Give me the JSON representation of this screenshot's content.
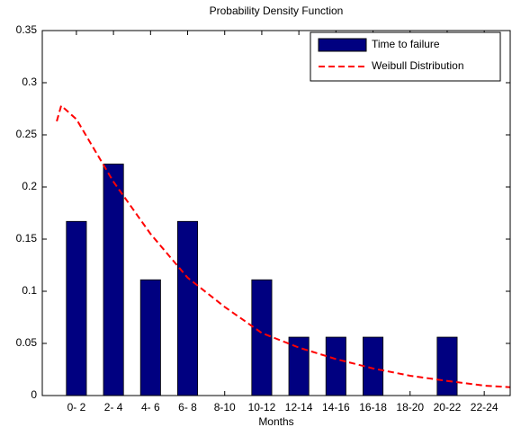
{
  "chart_data": {
    "type": "bar",
    "title": "Probability Density Function",
    "x_label": "Months",
    "categories": [
      "0- 2",
      "2- 4",
      "4- 6",
      "6- 8",
      "8-10",
      "10-12",
      "12-14",
      "14-16",
      "16-18",
      "18-20",
      "20-22",
      "22-24"
    ],
    "xlim": [
      0.08,
      12.7
    ],
    "series": [
      {
        "name": "Time to failure",
        "type": "bar",
        "color": "#000080",
        "values": [
          0.167,
          0.222,
          0.111,
          0.167,
          0,
          0.111,
          0.056,
          0.056,
          0.056,
          0,
          0.056,
          0
        ]
      },
      {
        "name": "Weibull Distribution",
        "type": "line",
        "color": "#ff0000",
        "x": [
          0.47,
          0.59,
          1,
          2,
          3,
          4,
          5,
          6,
          7,
          8,
          9,
          10,
          11,
          12,
          12.7
        ],
        "values": [
          0.263,
          0.278,
          0.265,
          0.205,
          0.155,
          0.113,
          0.085,
          0.06,
          0.046,
          0.035,
          0.026,
          0.019,
          0.014,
          0.0095,
          0.008
        ]
      }
    ],
    "ylim": [
      0,
      0.35
    ],
    "yticks": [
      0,
      0.05,
      0.1,
      0.15,
      0.2,
      0.25,
      0.3,
      0.35
    ],
    "legend": "northeast"
  }
}
